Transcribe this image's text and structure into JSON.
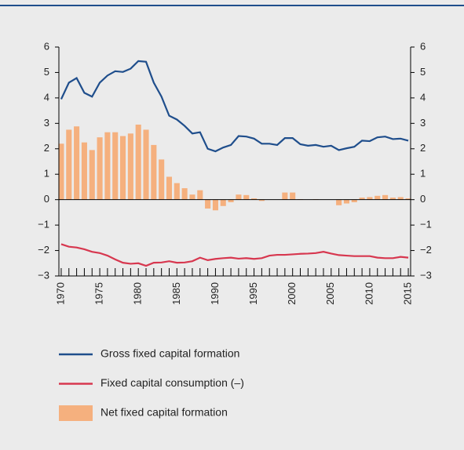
{
  "chart_data": {
    "type": "bar_line",
    "x": [
      1970,
      1971,
      1972,
      1973,
      1974,
      1975,
      1976,
      1977,
      1978,
      1979,
      1980,
      1981,
      1982,
      1983,
      1984,
      1985,
      1986,
      1987,
      1988,
      1989,
      1990,
      1991,
      1992,
      1993,
      1994,
      1995,
      1996,
      1997,
      1998,
      1999,
      2000,
      2001,
      2002,
      2003,
      2004,
      2005,
      2006,
      2007,
      2008,
      2009,
      2010,
      2011,
      2012,
      2013,
      2014,
      2015
    ],
    "series": [
      {
        "name": "Gross fixed capital formation",
        "type": "line",
        "color": "#1f4e8c",
        "values": [
          3.95,
          4.6,
          4.78,
          4.2,
          4.05,
          4.6,
          4.88,
          5.05,
          5.02,
          5.15,
          5.45,
          5.42,
          4.6,
          4.05,
          3.3,
          3.15,
          2.9,
          2.6,
          2.65,
          2.0,
          1.9,
          2.05,
          2.15,
          2.5,
          2.48,
          2.4,
          2.2,
          2.2,
          2.15,
          2.42,
          2.42,
          2.18,
          2.12,
          2.15,
          2.08,
          2.12,
          1.95,
          2.02,
          2.08,
          2.32,
          2.3,
          2.45,
          2.48,
          2.38,
          2.4,
          2.32
        ]
      },
      {
        "name": "Fixed capital consumption (–)",
        "type": "line",
        "color": "#d7374f",
        "values": [
          -1.75,
          -1.85,
          -1.88,
          -1.95,
          -2.05,
          -2.1,
          -2.2,
          -2.35,
          -2.48,
          -2.52,
          -2.5,
          -2.6,
          -2.48,
          -2.47,
          -2.42,
          -2.48,
          -2.47,
          -2.42,
          -2.28,
          -2.38,
          -2.33,
          -2.3,
          -2.28,
          -2.32,
          -2.3,
          -2.33,
          -2.3,
          -2.2,
          -2.17,
          -2.17,
          -2.15,
          -2.13,
          -2.12,
          -2.1,
          -2.05,
          -2.12,
          -2.18,
          -2.2,
          -2.22,
          -2.22,
          -2.22,
          -2.28,
          -2.3,
          -2.3,
          -2.25,
          -2.28
        ]
      },
      {
        "name": "Net fixed capital formation",
        "type": "bar",
        "color": "#f5b07e",
        "values": [
          2.2,
          2.75,
          2.88,
          2.25,
          1.95,
          2.45,
          2.65,
          2.65,
          2.5,
          2.6,
          2.95,
          2.75,
          2.15,
          1.58,
          0.9,
          0.65,
          0.45,
          0.2,
          0.37,
          -0.35,
          -0.42,
          -0.25,
          -0.1,
          0.2,
          0.18,
          0.05,
          -0.05,
          0,
          0,
          0.28,
          0.28,
          0.02,
          0,
          0.02,
          0,
          0,
          -0.22,
          -0.15,
          -0.1,
          0.08,
          0.1,
          0.15,
          0.18,
          0.08,
          0.1,
          0.05
        ]
      }
    ],
    "xlim": [
      1969.7,
      2015.3
    ],
    "xticks": [
      1970,
      1975,
      1980,
      1985,
      1990,
      1995,
      2000,
      2005,
      2010,
      2015
    ],
    "ylim": [
      -3,
      6
    ],
    "yticks": [
      {
        "value": -3,
        "label": "−3"
      },
      {
        "value": -2,
        "label": "−2"
      },
      {
        "value": -1,
        "label": "−1"
      },
      0,
      1,
      2,
      3,
      4,
      5,
      6
    ],
    "y2lim": [
      -3,
      6
    ],
    "y2ticks": [
      {
        "value": -3,
        "label": "−3"
      },
      {
        "value": -2,
        "label": "−2"
      },
      {
        "value": -1,
        "label": "−1"
      },
      0,
      1,
      2,
      3,
      4,
      5,
      6
    ],
    "legend": "below"
  }
}
